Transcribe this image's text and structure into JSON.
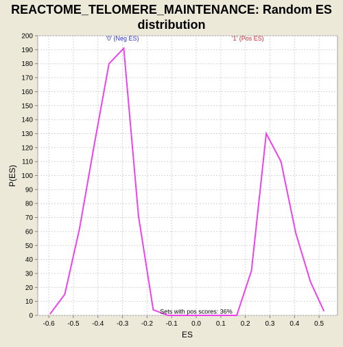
{
  "chart_data": {
    "type": "line",
    "title_lines": [
      "REACTOME_TELOMERE_MAINTENANCE: Random ES",
      "distribution"
    ],
    "xlabel": "ES",
    "ylabel": "P(ES)",
    "xlim": [
      -0.645,
      0.575
    ],
    "ylim": [
      0,
      200
    ],
    "x_ticks": [
      -0.6,
      -0.5,
      -0.4,
      -0.3,
      -0.2,
      -0.1,
      0.0,
      0.1,
      0.2,
      0.3,
      0.4,
      0.5
    ],
    "x_tick_labels": [
      "-0.6",
      "-0.5",
      "-0.4",
      "-0.3",
      "-0.2",
      "-0.1",
      "0.0",
      "0.1",
      "0.2",
      "0.3",
      "0.4",
      "0.5"
    ],
    "y_ticks": [
      0,
      10,
      20,
      30,
      40,
      50,
      60,
      70,
      80,
      90,
      100,
      110,
      120,
      130,
      140,
      150,
      160,
      170,
      180,
      190,
      200
    ],
    "y_tick_labels": [
      "0",
      "10",
      "20",
      "30",
      "40",
      "50",
      "60",
      "70",
      "80",
      "90",
      "100",
      "110",
      "120",
      "130",
      "140",
      "150",
      "160",
      "170",
      "180",
      "190",
      "200"
    ],
    "grid": true,
    "series": [
      {
        "color": "#ee40ee",
        "x": [
          -0.595,
          -0.535,
          -0.475,
          -0.415,
          -0.355,
          -0.295,
          -0.235,
          -0.175,
          -0.115,
          0.165,
          0.225,
          0.285,
          0.345,
          0.405,
          0.465,
          0.52
        ],
        "y": [
          1,
          15,
          62,
          122,
          180,
          191,
          71,
          4,
          0,
          0,
          32,
          130,
          110,
          59,
          24,
          3
        ]
      }
    ],
    "annotations": [
      {
        "text": "'0' (Neg ES)",
        "x": -0.3,
        "y": 196.5,
        "role": "neg"
      },
      {
        "text": "'1' (Pos ES)",
        "x": 0.21,
        "y": 196.5,
        "role": "pos"
      },
      {
        "text": "Sets with pos scores: 36%",
        "x": 0.0,
        "y": 1.3,
        "role": "mid"
      }
    ]
  }
}
